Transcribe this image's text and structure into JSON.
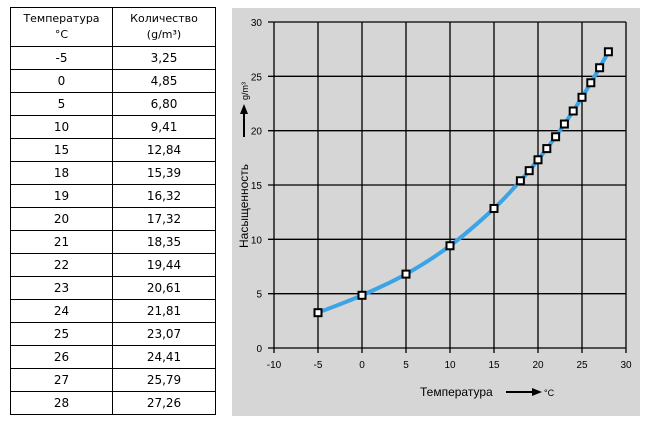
{
  "table": {
    "headers": [
      {
        "line1": "Температура",
        "line2": "°C"
      },
      {
        "line1": "Количество",
        "line2": "(g/m³)"
      }
    ],
    "rows": [
      [
        "-5",
        "3,25"
      ],
      [
        "0",
        "4,85"
      ],
      [
        "5",
        "6,80"
      ],
      [
        "10",
        "9,41"
      ],
      [
        "15",
        "12,84"
      ],
      [
        "18",
        "15,39"
      ],
      [
        "19",
        "16,32"
      ],
      [
        "20",
        "17,32"
      ],
      [
        "21",
        "18,35"
      ],
      [
        "22",
        "19,44"
      ],
      [
        "23",
        "20,61"
      ],
      [
        "24",
        "21,81"
      ],
      [
        "25",
        "23,07"
      ],
      [
        "26",
        "24,41"
      ],
      [
        "27",
        "25,79"
      ],
      [
        "28",
        "27,26"
      ]
    ]
  },
  "chart": {
    "xlabel": "Температура",
    "xunit": "°C",
    "ylabel": "Насыщенность",
    "yunit": "g/m³",
    "line_color": "#3ba4e6",
    "background": "#d6d6d6"
  },
  "chart_data": {
    "type": "line",
    "title": "",
    "xlabel": "Температура °C",
    "ylabel": "Насыщенность g/m³",
    "xlim": [
      -10,
      30
    ],
    "ylim": [
      0,
      30
    ],
    "xticks": [
      -10,
      -5,
      0,
      5,
      10,
      15,
      20,
      25,
      30
    ],
    "yticks": [
      0,
      5,
      10,
      15,
      20,
      25,
      30
    ],
    "grid": true,
    "legend": null,
    "x": [
      -5,
      0,
      5,
      10,
      15,
      18,
      19,
      20,
      21,
      22,
      23,
      24,
      25,
      26,
      27,
      28
    ],
    "series": [
      {
        "name": "Насыщенность",
        "values": [
          3.25,
          4.85,
          6.8,
          9.41,
          12.84,
          15.39,
          16.32,
          17.32,
          18.35,
          19.44,
          20.61,
          21.81,
          23.07,
          24.41,
          25.79,
          27.26
        ],
        "marker": "square",
        "color": "#3ba4e6"
      }
    ]
  }
}
